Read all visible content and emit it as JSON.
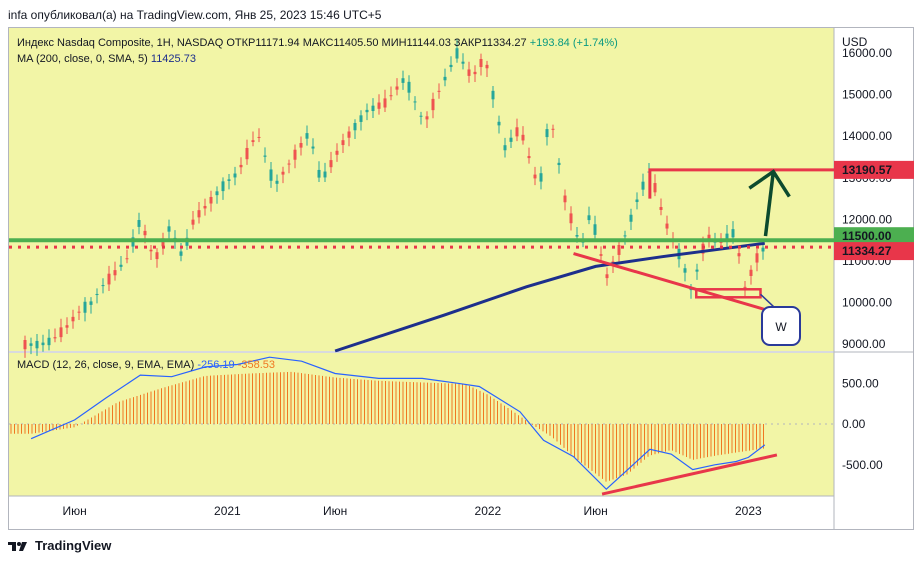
{
  "header": {
    "published": "infa опубликовал(а) на TradingView.com, Янв 25, 2023 15:46 UTC+5"
  },
  "legend": {
    "symbol": "Индекс Nasdaq Composite, 1H, NASDAQ",
    "open": "ОТКР11171.94",
    "high": "МАКС11405.50",
    "low": "МИН11144.03",
    "close": "ЗАКР11334.27",
    "change": "+193.84 (+1.74%)",
    "ma_label": "MA (200, close, 0, SMA, 5)",
    "ma_value": "11425.73",
    "macd_label": "MACD (12, 26, close, 9, EMA, EMA)",
    "macd_value": "-256.19",
    "signal_value": "-358.53"
  },
  "currency": "USD",
  "footer": {
    "brand": "TradingView"
  },
  "colors": {
    "panel_bg": "#f2f5a6",
    "up": "#26a69a",
    "down": "#ef5350",
    "ma": "#1d2f8c",
    "macd_line": "#2962ff",
    "hist": "#f07722",
    "annot_red": "#e8364a",
    "annot_green": "#4caf50",
    "annot_arrow": "#0c4a2e",
    "badge_blue": "#2a3a9a"
  },
  "chart_data": [
    {
      "type": "line",
      "title": "Индекс Nasdaq Composite, 1H, NASDAQ",
      "y_axis": {
        "ticks": [
          "9000.00",
          "10000.00",
          "11000.00",
          "12000.00",
          "13000.00",
          "14000.00",
          "15000.00",
          "16000.00"
        ],
        "ylim": [
          8990,
          16000
        ]
      },
      "x_axis": {
        "ticks": [
          "Июн",
          "2021",
          "Июн",
          "2022",
          "Июн",
          "2023"
        ]
      },
      "price_path": {
        "x": [
          "2020-04-15",
          "2020-05-01",
          "2020-05-20",
          "2020-06-08",
          "2020-06-25",
          "2020-07-10",
          "2020-08-01",
          "2020-08-15",
          "2020-09-01",
          "2020-09-21",
          "2020-10-12",
          "2020-10-30",
          "2020-11-15",
          "2020-12-01",
          "2020-12-31",
          "2021-01-15",
          "2021-02-12",
          "2021-03-08",
          "2021-03-31",
          "2021-04-26",
          "2021-05-12",
          "2021-06-10",
          "2021-07-15",
          "2021-08-10",
          "2021-09-07",
          "2021-10-04",
          "2021-10-25",
          "2021-11-19",
          "2021-12-10",
          "2021-12-20",
          "2021-12-28",
          "2022-01-24",
          "2022-02-15",
          "2022-03-14",
          "2022-03-29",
          "2022-04-20",
          "2022-05-12",
          "2022-05-25",
          "2022-06-16",
          "2022-07-10",
          "2022-08-01",
          "2022-08-16",
          "2022-09-05",
          "2022-09-30",
          "2022-10-13",
          "2022-10-25",
          "2022-11-03",
          "2022-11-20",
          "2022-12-13",
          "2022-12-28",
          "2023-01-10",
          "2023-01-24"
        ],
        "y": [
          8990,
          9100,
          9400,
          9800,
          10000,
          10400,
          10800,
          11100,
          12000,
          11000,
          11800,
          11100,
          12000,
          12300,
          12900,
          13100,
          14100,
          12800,
          13400,
          14100,
          12900,
          13800,
          14600,
          14800,
          15400,
          14300,
          15100,
          16000,
          15400,
          15700,
          15900,
          13700,
          14200,
          12700,
          14600,
          12400,
          11300,
          12200,
          10600,
          11500,
          12600,
          13190,
          12000,
          11000,
          10300,
          11000,
          11600,
          11400,
          11700,
          10300,
          11000,
          11334
        ]
      },
      "series": [
        {
          "name": "MA (200, close, 0, SMA, 5)",
          "x": [
            "2021-01-28",
            "2021-06-01",
            "2021-11-01",
            "2022-02-24",
            "2022-06-01",
            "2022-09-01",
            "2022-11-15",
            "2023-01-24"
          ],
          "y": [
            7900,
            8600,
            9700,
            10380,
            10870,
            11100,
            11270,
            11425.73
          ]
        }
      ],
      "last_close": 11334.27,
      "ohlc_last": {
        "open": 11171.94,
        "high": 11405.5,
        "low": 11144.03,
        "close": 11334.27
      },
      "annotations": {
        "labels": [
          {
            "text": "13190.57",
            "value": 13190.57
          },
          {
            "text": "11500.00",
            "value": 11500
          },
          {
            "text": "11334.27",
            "value": 11334.27
          },
          {
            "text": "W"
          }
        ]
      }
    },
    {
      "type": "bar",
      "title": "MACD (12, 26, close, 9, EMA, EMA)",
      "y_axis": {
        "ticks": [
          "-500.00",
          "0.00",
          "500.00"
        ],
        "ylim": [
          -870,
          870
        ]
      },
      "series": [
        {
          "name": "MACD",
          "x": [
            "2020-04-01",
            "2020-06-01",
            "2020-07-15",
            "2020-09-01",
            "2020-10-15",
            "2020-12-01",
            "2021-01-15",
            "2021-03-01",
            "2021-04-15",
            "2021-06-01",
            "2021-08-01",
            "2021-10-01",
            "2021-11-20",
            "2021-12-20",
            "2022-02-15",
            "2022-03-20",
            "2022-05-01",
            "2022-06-16",
            "2022-08-16",
            "2022-09-15",
            "2022-10-15",
            "2022-11-15",
            "2022-12-15",
            "2023-01-01",
            "2023-01-24"
          ],
          "y": [
            -180,
            50,
            320,
            600,
            580,
            700,
            730,
            820,
            770,
            620,
            560,
            560,
            500,
            460,
            150,
            -200,
            -400,
            -800,
            -310,
            -370,
            -560,
            -500,
            -460,
            -410,
            -256.19
          ]
        },
        {
          "name": "Signal",
          "x": [
            "2023-01-24"
          ],
          "y": [
            -358.53
          ]
        }
      ],
      "histogram": {
        "x": [
          "2020-04-01",
          "2020-06-01",
          "2020-08-01",
          "2020-10-01",
          "2020-12-01",
          "2021-02-01",
          "2021-04-01",
          "2021-06-01",
          "2021-08-01",
          "2021-10-01",
          "2021-12-01",
          "2022-01-01",
          "2022-02-01",
          "2022-03-01",
          "2022-04-01",
          "2022-05-01",
          "2022-06-16",
          "2022-07-15",
          "2022-08-15",
          "2022-09-15",
          "2022-10-15",
          "2022-11-15",
          "2022-12-15",
          "2023-01-24"
        ],
        "y": [
          -120,
          -40,
          270,
          440,
          590,
          620,
          640,
          570,
          530,
          510,
          490,
          360,
          180,
          10,
          -160,
          -400,
          -710,
          -620,
          -390,
          -320,
          -440,
          -390,
          -350,
          -300
        ]
      }
    }
  ]
}
